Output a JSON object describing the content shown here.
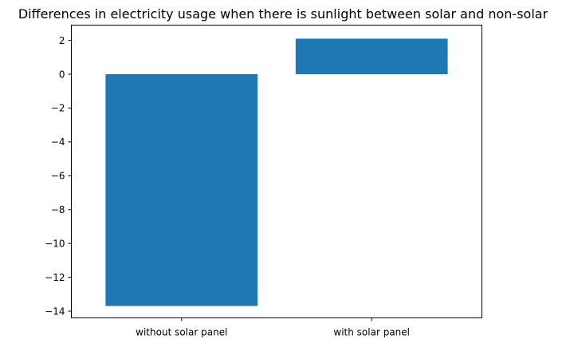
{
  "chart_data": {
    "type": "bar",
    "title": "Differences in electricity usage when there is sunlight between solar and non-solar",
    "xlabel": "",
    "ylabel": "",
    "categories": [
      "without solar panel",
      "with solar panel"
    ],
    "values": [
      -13.7,
      2.1
    ],
    "ylim": [
      -14.4,
      2.9
    ],
    "yticks": [
      2,
      0,
      -2,
      -4,
      -6,
      -8,
      -10,
      -12,
      -14
    ],
    "ytick_labels": [
      "2",
      "0",
      "−2",
      "−4",
      "−6",
      "−8",
      "−10",
      "−12",
      "−14"
    ],
    "bar_color": "#1f77b4",
    "grid": false,
    "legend": "none"
  }
}
